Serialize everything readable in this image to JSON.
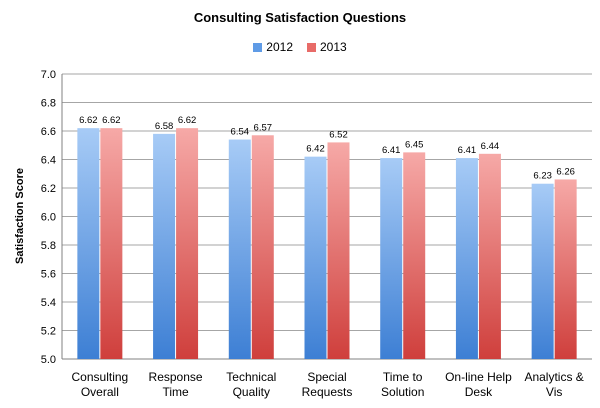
{
  "chart_data": {
    "type": "bar",
    "title": "Consulting Satisfaction Questions",
    "xlabel": "",
    "ylabel": "Satisfaction Score",
    "ylim": [
      5.0,
      7.0
    ],
    "yticks": [
      "5.0",
      "5.2",
      "5.4",
      "5.6",
      "5.8",
      "6.0",
      "6.2",
      "6.4",
      "6.6",
      "6.8",
      "7.0"
    ],
    "grid": true,
    "legend_position": "top",
    "categories": [
      [
        "Consulting",
        "Overall"
      ],
      [
        "Response",
        "Time"
      ],
      [
        "Technical",
        "Quality"
      ],
      [
        "Special",
        "Requests"
      ],
      [
        "Time to",
        "Solution"
      ],
      [
        "On-line Help",
        "Desk"
      ],
      [
        "Analytics &",
        "Vis"
      ]
    ],
    "series": [
      {
        "name": "2012",
        "values": [
          6.62,
          6.58,
          6.54,
          6.42,
          6.41,
          6.41,
          6.23
        ],
        "color_top": "#a7cbf6",
        "color_bottom": "#3d7fd4"
      },
      {
        "name": "2013",
        "values": [
          6.62,
          6.62,
          6.57,
          6.52,
          6.45,
          6.44,
          6.26
        ],
        "color_top": "#f6a9a7",
        "color_bottom": "#cf3f3c"
      }
    ]
  }
}
